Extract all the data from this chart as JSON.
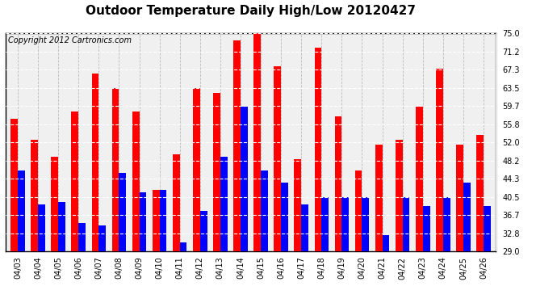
{
  "title": "Outdoor Temperature Daily High/Low 20120427",
  "copyright": "Copyright 2012 Cartronics.com",
  "dates": [
    "04/03",
    "04/04",
    "04/05",
    "04/06",
    "04/07",
    "04/08",
    "04/09",
    "04/10",
    "04/11",
    "04/12",
    "04/13",
    "04/14",
    "04/15",
    "04/16",
    "04/17",
    "04/18",
    "04/19",
    "04/20",
    "04/21",
    "04/22",
    "04/23",
    "04/24",
    "04/25",
    "04/26"
  ],
  "highs": [
    57.0,
    52.5,
    49.0,
    58.5,
    66.5,
    63.5,
    58.5,
    42.0,
    49.5,
    63.5,
    62.5,
    73.5,
    75.0,
    68.0,
    48.5,
    72.0,
    57.5,
    46.0,
    51.5,
    52.5,
    59.5,
    67.5,
    51.5,
    53.5
  ],
  "lows": [
    46.0,
    39.0,
    39.5,
    35.0,
    34.5,
    45.5,
    41.5,
    42.0,
    31.0,
    37.5,
    49.0,
    59.5,
    46.0,
    43.5,
    39.0,
    40.5,
    40.5,
    40.5,
    32.5,
    40.5,
    38.5,
    40.5,
    43.5,
    38.5
  ],
  "high_color": "#ff0000",
  "low_color": "#0000ff",
  "bg_color": "#ffffff",
  "plot_bg_color": "#f0f0f0",
  "yticks": [
    29.0,
    32.8,
    36.7,
    40.5,
    44.3,
    48.2,
    52.0,
    55.8,
    59.7,
    63.5,
    67.3,
    71.2,
    75.0
  ],
  "ymin": 29.0,
  "ymax": 75.0,
  "title_fontsize": 11,
  "copyright_fontsize": 7,
  "tick_fontsize": 7,
  "bar_width": 0.35
}
